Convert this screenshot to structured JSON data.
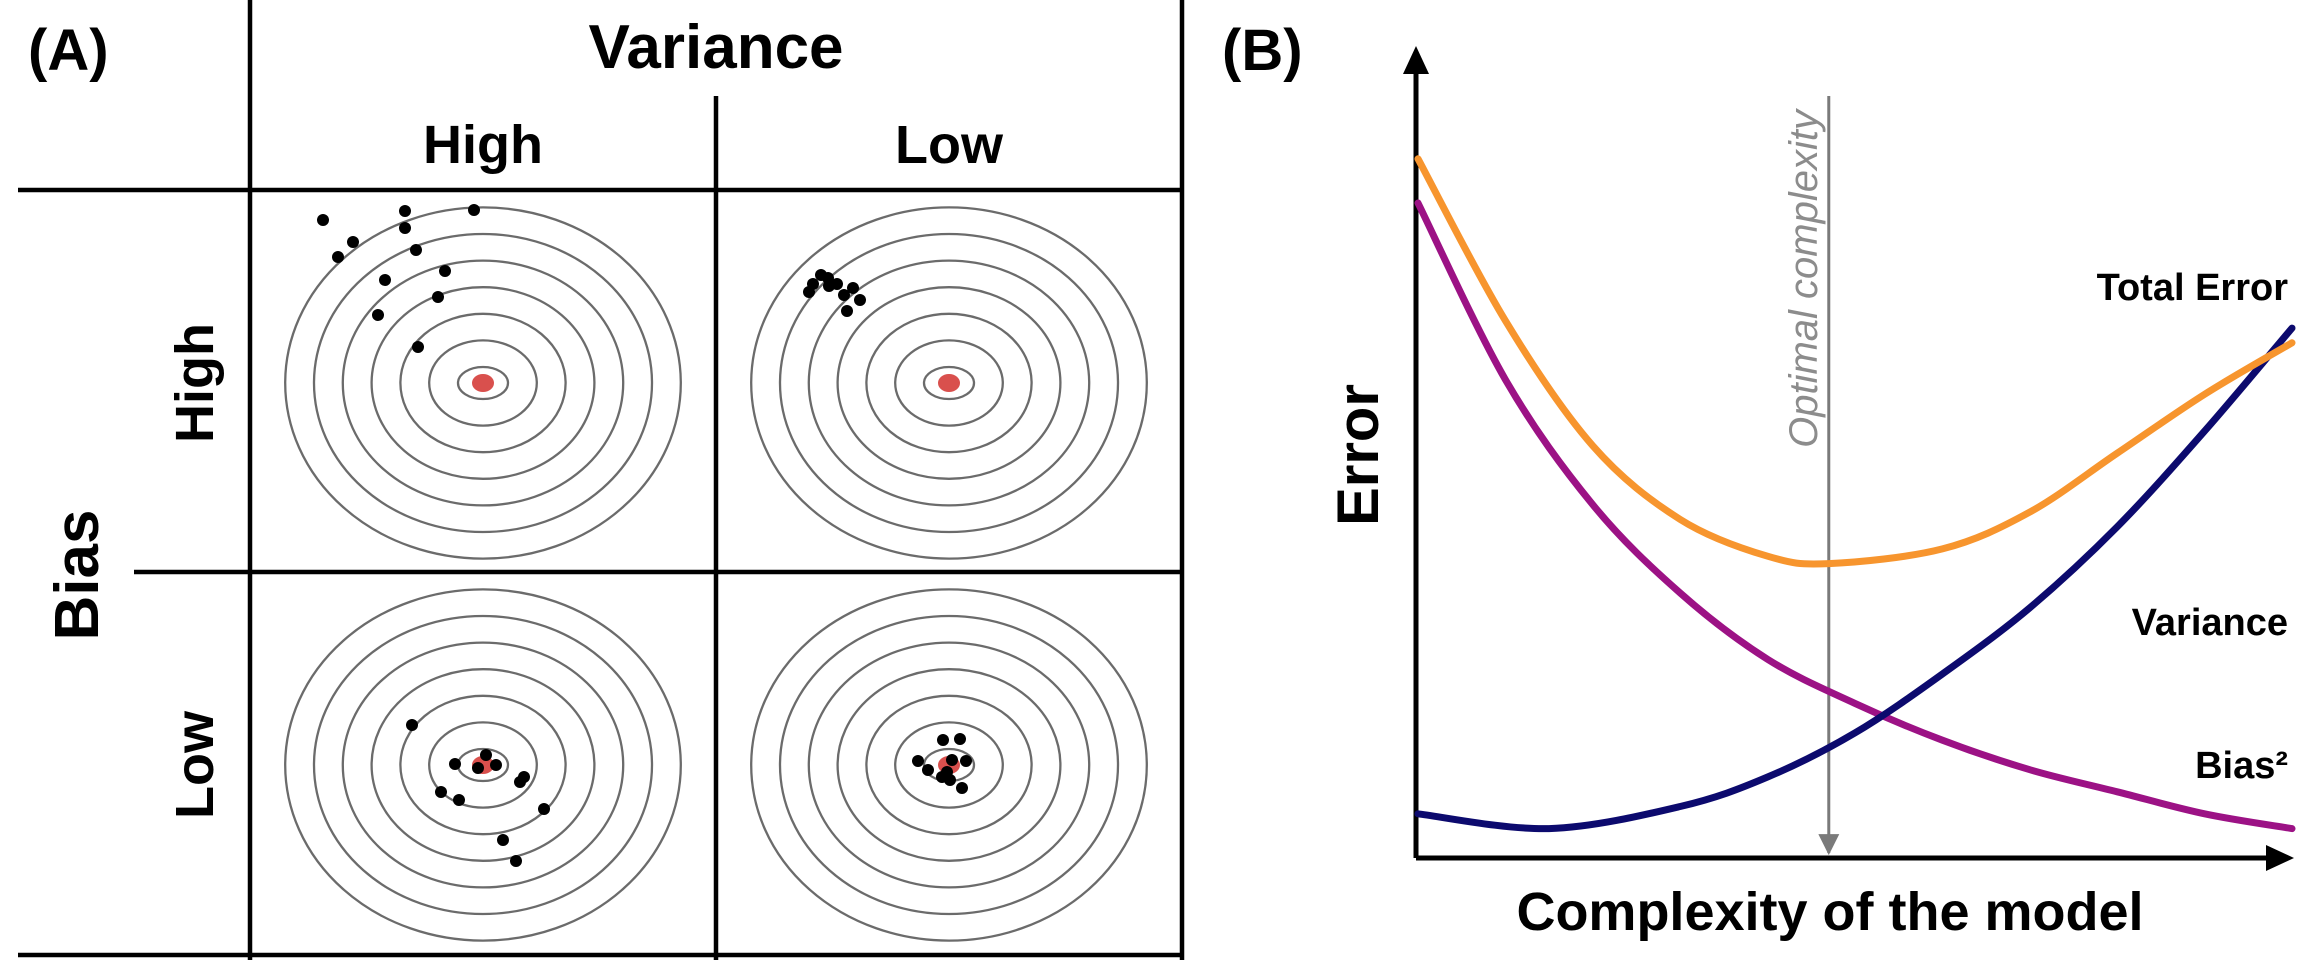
{
  "panel_a": {
    "label": "(A)",
    "variance_title": "Variance",
    "variance_high": "High",
    "variance_low": "Low",
    "bias_title": "Bias",
    "bias_high": "High",
    "bias_low": "Low"
  },
  "panel_b": {
    "label": "(B)",
    "y_label": "Error",
    "x_label": "Complexity of the model",
    "optimal_label": "Optimal complexity"
  },
  "colors": {
    "total_error": "#F7952E",
    "variance": "#0C0A6E",
    "bias": "#9C1285",
    "bullseye": "#D9504D",
    "ring": "#6B6B6B",
    "marker": "#7A7A7A"
  },
  "chart_data": {
    "type": "line",
    "title": "",
    "xlabel": "Complexity of the model",
    "ylabel": "Error",
    "xlim": [
      0,
      1
    ],
    "ylim": [
      0,
      1
    ],
    "optimal_x": 0.47,
    "legend": [
      "Total Error",
      "Variance",
      "Bias²"
    ],
    "series": [
      {
        "name": "Total Error",
        "color": "#F7952E",
        "x": [
          0,
          0.1,
          0.2,
          0.3,
          0.4,
          0.47,
          0.6,
          0.7,
          0.8,
          0.9,
          1.0
        ],
        "values": [
          0.95,
          0.73,
          0.56,
          0.46,
          0.41,
          0.4,
          0.42,
          0.47,
          0.55,
          0.63,
          0.7
        ]
      },
      {
        "name": "Variance",
        "color": "#0C0A6E",
        "x": [
          0,
          0.15,
          0.3,
          0.4,
          0.5,
          0.6,
          0.7,
          0.8,
          0.9,
          1.0
        ],
        "values": [
          0.06,
          0.04,
          0.07,
          0.11,
          0.17,
          0.25,
          0.34,
          0.45,
          0.58,
          0.72
        ]
      },
      {
        "name": "Bias²",
        "color": "#9C1285",
        "x": [
          0,
          0.1,
          0.2,
          0.3,
          0.4,
          0.5,
          0.6,
          0.7,
          0.8,
          0.9,
          1.0
        ],
        "values": [
          0.89,
          0.65,
          0.48,
          0.36,
          0.27,
          0.21,
          0.16,
          0.12,
          0.09,
          0.06,
          0.04
        ]
      }
    ]
  }
}
